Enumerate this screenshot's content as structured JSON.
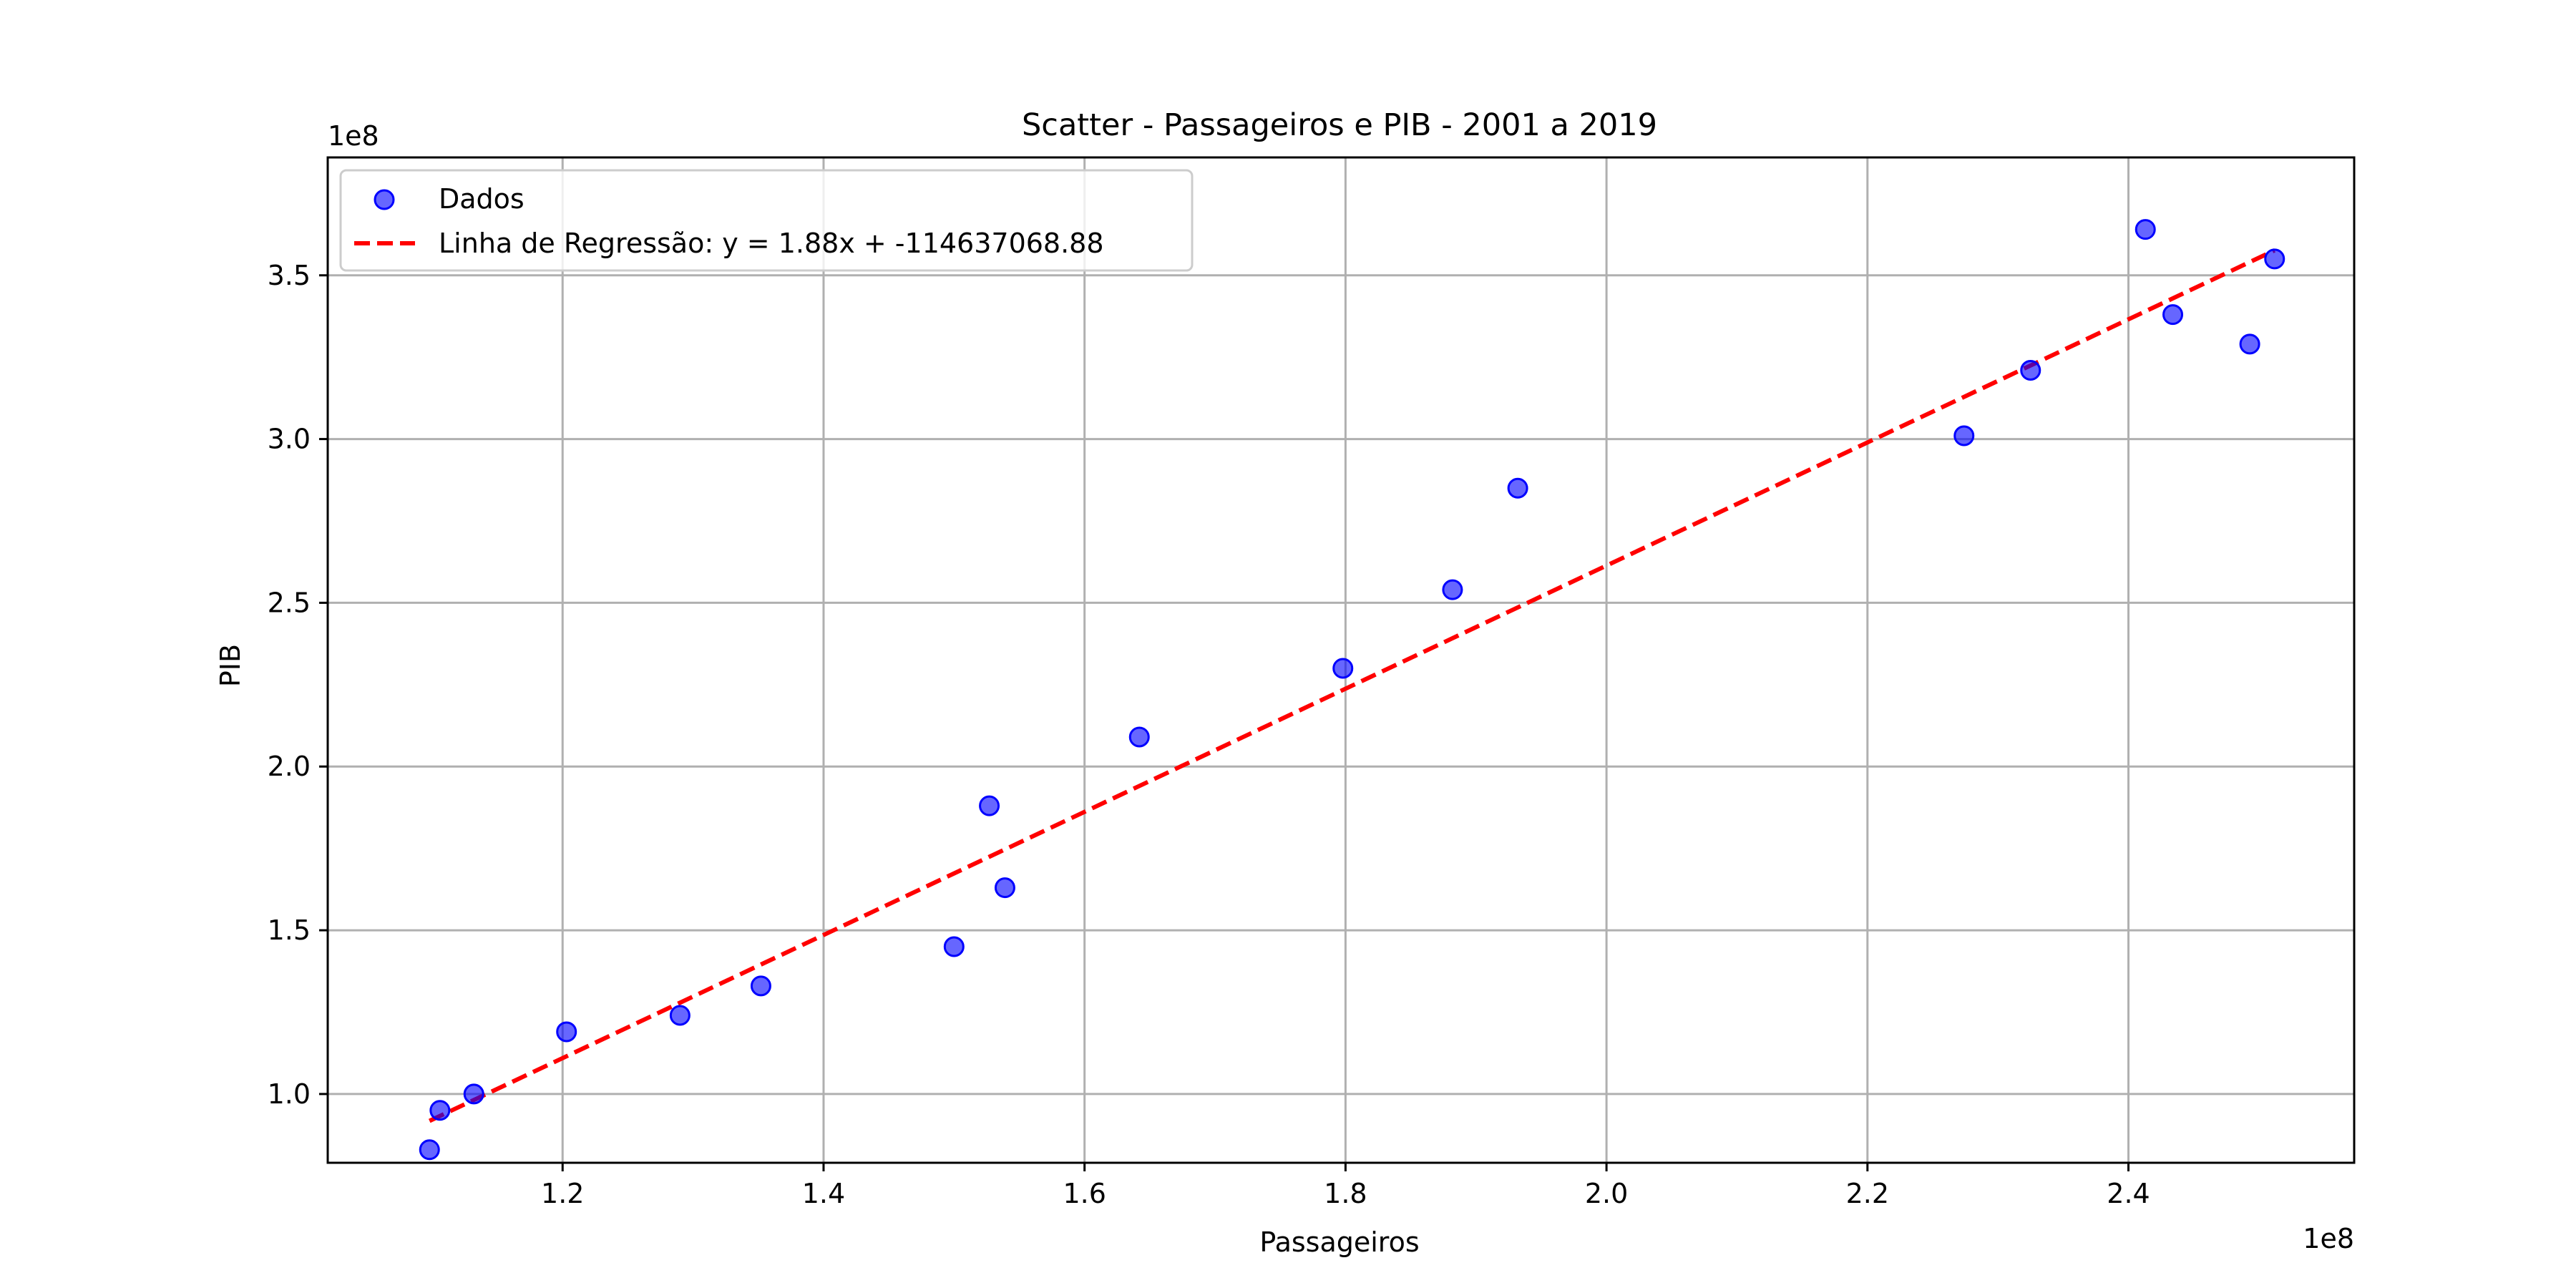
{
  "chart_data": {
    "type": "scatter",
    "title": "Scatter - Passageiros e PIB - 2001 a 2019",
    "xlabel": "Passageiros",
    "ylabel": "PIB",
    "x_offset_text": "1e8",
    "y_offset_text": "1e8",
    "xlim": [
      102000000,
      257300000
    ],
    "ylim": [
      79000000,
      386000000
    ],
    "xticks": [
      120000000,
      140000000,
      160000000,
      180000000,
      200000000,
      220000000,
      240000000
    ],
    "xtick_labels": [
      "1.2",
      "1.4",
      "1.6",
      "1.8",
      "2.0",
      "2.2",
      "2.4"
    ],
    "yticks": [
      100000000,
      150000000,
      200000000,
      250000000,
      300000000,
      350000000
    ],
    "ytick_labels": [
      "1.0",
      "1.5",
      "2.0",
      "2.5",
      "3.0",
      "3.5"
    ],
    "grid": true,
    "legend_position": "top-left",
    "series": [
      {
        "name": "Dados",
        "kind": "scatter",
        "color": "#0000ff",
        "points": [
          {
            "x": 109800000,
            "y": 83000000
          },
          {
            "x": 110600000,
            "y": 95000000
          },
          {
            "x": 113200000,
            "y": 100000000
          },
          {
            "x": 120300000,
            "y": 119000000
          },
          {
            "x": 129000000,
            "y": 124000000
          },
          {
            "x": 135200000,
            "y": 133000000
          },
          {
            "x": 150000000,
            "y": 145000000
          },
          {
            "x": 152700000,
            "y": 188000000
          },
          {
            "x": 153900000,
            "y": 163000000
          },
          {
            "x": 164200000,
            "y": 209000000
          },
          {
            "x": 179800000,
            "y": 230000000
          },
          {
            "x": 188200000,
            "y": 254000000
          },
          {
            "x": 193200000,
            "y": 285000000
          },
          {
            "x": 227400000,
            "y": 301000000
          },
          {
            "x": 232500000,
            "y": 321000000
          },
          {
            "x": 241300000,
            "y": 364000000
          },
          {
            "x": 243400000,
            "y": 338000000
          },
          {
            "x": 249300000,
            "y": 329000000
          },
          {
            "x": 251200000,
            "y": 355000000
          }
        ]
      },
      {
        "name": "Linha de Regressão: y = 1.88x + -114637068.88",
        "kind": "line",
        "style": "dashed",
        "color": "#ff0000",
        "slope": 1.88,
        "intercept": -114637068.88,
        "x_range": [
          109800000,
          251200000
        ]
      }
    ]
  }
}
